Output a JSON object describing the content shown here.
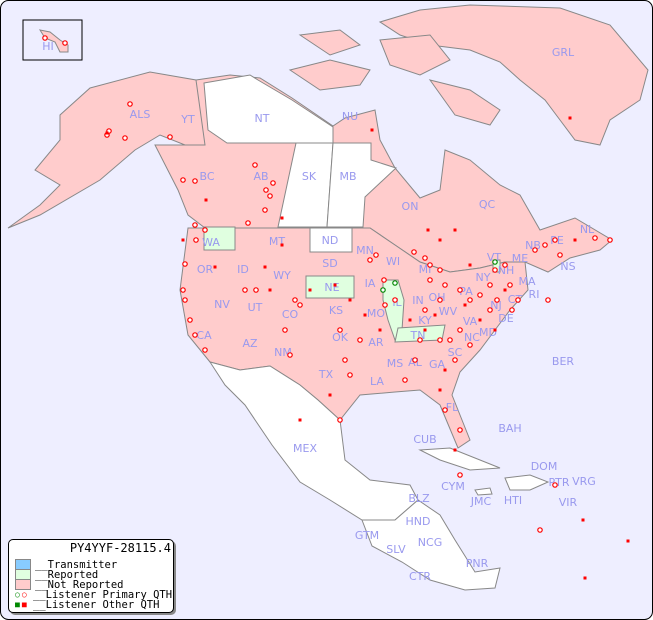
{
  "title": "PY4YYF-28115.4",
  "colors": {
    "ocean": "#eeeeff",
    "not_reported": "#ffcccc",
    "reported": "#e0ffe0",
    "transmitter": "#88ccff",
    "no_data": "#ffffff",
    "border": "#888888",
    "label": "#9999ee",
    "dot": "#ff0000",
    "primary_green": "#008000"
  },
  "legend": [
    {
      "label": "__Transmitter",
      "swatch": "transmitter"
    },
    {
      "label": "__Reported",
      "swatch": "reported"
    },
    {
      "label": "__Not Reported",
      "swatch": "not_reported"
    },
    {
      "label": "__Listener Primary QTH",
      "icon": "circle-marker-icon"
    },
    {
      "label": "__Listener Other QTH",
      "icon": "square-marker-icon"
    }
  ],
  "labels": [
    "HI",
    "ALS",
    "YT",
    "NT",
    "NU",
    "GRL",
    "BC",
    "AB",
    "SK",
    "MB",
    "ON",
    "QC",
    "NL",
    "PE",
    "NB",
    "NS",
    "ME",
    "VT",
    "NH",
    "MA",
    "RI",
    "CT",
    "NJ",
    "DE",
    "MD",
    "NY",
    "PA",
    "OH",
    "WV",
    "VA",
    "NC",
    "SC",
    "GA",
    "FL",
    "AL",
    "MS",
    "TN",
    "KY",
    "IN",
    "IL",
    "MI",
    "WI",
    "MN",
    "IA",
    "MO",
    "AR",
    "LA",
    "TX",
    "OK",
    "KS",
    "NE",
    "SD",
    "ND",
    "MT",
    "WY",
    "CO",
    "NM",
    "AZ",
    "UT",
    "NV",
    "CA",
    "OR",
    "ID",
    "WA",
    "MEX",
    "CUB",
    "BAH",
    "BER",
    "CYM",
    "JMC",
    "HTI",
    "DOM",
    "PTR",
    "VRG",
    "VIR",
    "BLZ",
    "HND",
    "GTM",
    "SLV",
    "NCG",
    "CTR",
    "PNR"
  ]
}
